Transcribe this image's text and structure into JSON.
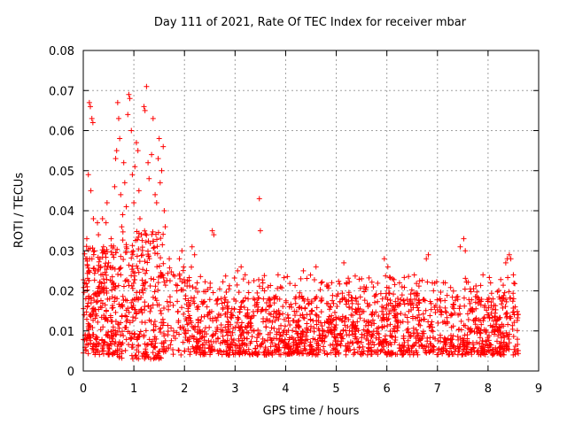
{
  "chart_data": {
    "type": "scatter",
    "title": "Day 111 of 2021, Rate Of TEC Index for receiver mbar",
    "xlabel": "GPS time / hours",
    "ylabel": "ROTI / TECUs",
    "xlim": [
      0,
      9
    ],
    "ylim": [
      0,
      0.08
    ],
    "xticks": [
      0,
      1,
      2,
      3,
      4,
      5,
      6,
      7,
      8,
      9
    ],
    "xtick_labels": [
      "0",
      "1",
      "2",
      "3",
      "4",
      "5",
      "6",
      "7",
      "8",
      "9"
    ],
    "yticks": [
      0,
      0.01,
      0.02,
      0.03,
      0.04,
      0.05,
      0.06,
      0.07,
      0.08
    ],
    "ytick_labels": [
      "0",
      "0.01",
      "0.02",
      "0.03",
      "0.04",
      "0.05",
      "0.06",
      "0.07",
      "0.08"
    ],
    "grid": true,
    "marker": "+",
    "marker_color": "#ff0000",
    "series": [
      {
        "name": "ROTI",
        "points": [
          [
            0.02,
            0.014
          ],
          [
            0.03,
            0.022
          ],
          [
            0.05,
            0.018
          ],
          [
            0.05,
            0.028
          ],
          [
            0.07,
            0.033
          ],
          [
            0.08,
            0.016
          ],
          [
            0.1,
            0.049
          ],
          [
            0.12,
            0.067
          ],
          [
            0.14,
            0.066
          ],
          [
            0.15,
            0.045
          ],
          [
            0.17,
            0.063
          ],
          [
            0.19,
            0.062
          ],
          [
            0.2,
            0.038
          ],
          [
            0.22,
            0.03
          ],
          [
            0.24,
            0.025
          ],
          [
            0.25,
            0.019
          ],
          [
            0.28,
            0.037
          ],
          [
            0.3,
            0.034
          ],
          [
            0.33,
            0.028
          ],
          [
            0.35,
            0.024
          ],
          [
            0.38,
            0.038
          ],
          [
            0.4,
            0.031
          ],
          [
            0.42,
            0.022
          ],
          [
            0.45,
            0.037
          ],
          [
            0.47,
            0.042
          ],
          [
            0.5,
            0.027
          ],
          [
            0.52,
            0.018
          ],
          [
            0.55,
            0.033
          ],
          [
            0.58,
            0.029
          ],
          [
            0.6,
            0.021
          ],
          [
            0.62,
            0.046
          ],
          [
            0.64,
            0.053
          ],
          [
            0.66,
            0.055
          ],
          [
            0.68,
            0.067
          ],
          [
            0.7,
            0.063
          ],
          [
            0.72,
            0.058
          ],
          [
            0.74,
            0.044
          ],
          [
            0.76,
            0.036
          ],
          [
            0.78,
            0.039
          ],
          [
            0.8,
            0.052
          ],
          [
            0.82,
            0.047
          ],
          [
            0.85,
            0.041
          ],
          [
            0.88,
            0.064
          ],
          [
            0.9,
            0.069
          ],
          [
            0.92,
            0.068
          ],
          [
            0.95,
            0.06
          ],
          [
            0.97,
            0.049
          ],
          [
            1.0,
            0.042
          ],
          [
            1.02,
            0.051
          ],
          [
            1.05,
            0.057
          ],
          [
            1.08,
            0.055
          ],
          [
            1.1,
            0.045
          ],
          [
            1.12,
            0.038
          ],
          [
            1.15,
            0.034
          ],
          [
            1.2,
            0.066
          ],
          [
            1.22,
            0.065
          ],
          [
            1.25,
            0.071
          ],
          [
            1.28,
            0.052
          ],
          [
            1.3,
            0.048
          ],
          [
            1.35,
            0.054
          ],
          [
            1.38,
            0.063
          ],
          [
            1.42,
            0.044
          ],
          [
            1.45,
            0.042
          ],
          [
            1.48,
            0.053
          ],
          [
            1.5,
            0.058
          ],
          [
            1.52,
            0.047
          ],
          [
            1.55,
            0.05
          ],
          [
            1.58,
            0.056
          ],
          [
            1.6,
            0.04
          ],
          [
            1.62,
            0.036
          ],
          [
            1.7,
            0.028
          ],
          [
            1.78,
            0.024
          ],
          [
            1.85,
            0.02
          ],
          [
            1.9,
            0.028
          ],
          [
            1.95,
            0.03
          ],
          [
            2.02,
            0.018
          ],
          [
            2.15,
            0.031
          ],
          [
            2.2,
            0.029
          ],
          [
            2.25,
            0.022
          ],
          [
            2.55,
            0.035
          ],
          [
            2.58,
            0.034
          ],
          [
            3.05,
            0.025
          ],
          [
            3.12,
            0.026
          ],
          [
            3.2,
            0.024
          ],
          [
            3.48,
            0.043
          ],
          [
            3.5,
            0.035
          ],
          [
            3.55,
            0.022
          ],
          [
            3.85,
            0.024
          ],
          [
            4.3,
            0.023
          ],
          [
            4.35,
            0.025
          ],
          [
            4.6,
            0.026
          ],
          [
            4.7,
            0.022
          ],
          [
            5.15,
            0.027
          ],
          [
            5.2,
            0.022
          ],
          [
            5.25,
            0.019
          ],
          [
            5.5,
            0.023
          ],
          [
            5.55,
            0.021
          ],
          [
            5.95,
            0.028
          ],
          [
            6.02,
            0.026
          ],
          [
            6.25,
            0.022
          ],
          [
            6.3,
            0.021
          ],
          [
            6.6,
            0.019
          ],
          [
            6.78,
            0.028
          ],
          [
            6.82,
            0.029
          ],
          [
            6.9,
            0.022
          ],
          [
            7.05,
            0.018
          ],
          [
            7.45,
            0.031
          ],
          [
            7.52,
            0.033
          ],
          [
            7.55,
            0.03
          ],
          [
            7.9,
            0.024
          ],
          [
            8.05,
            0.022
          ],
          [
            8.35,
            0.027
          ],
          [
            8.38,
            0.028
          ],
          [
            8.42,
            0.029
          ],
          [
            8.45,
            0.028
          ],
          [
            8.5,
            0.024
          ]
        ]
      }
    ],
    "background_density": [
      {
        "x": [
          0,
          0.6
        ],
        "y": [
          0.004,
          0.032
        ],
        "n": 240
      },
      {
        "x": [
          0.6,
          1.6
        ],
        "y": [
          0.003,
          0.035
        ],
        "n": 320
      },
      {
        "x": [
          1.6,
          2.2
        ],
        "y": [
          0.004,
          0.026
        ],
        "n": 110
      },
      {
        "x": [
          2.2,
          8.6
        ],
        "y": [
          0.004,
          0.018
        ],
        "n": 1500
      },
      {
        "x": [
          2.2,
          8.6
        ],
        "y": [
          0.018,
          0.024
        ],
        "n": 180
      }
    ]
  }
}
